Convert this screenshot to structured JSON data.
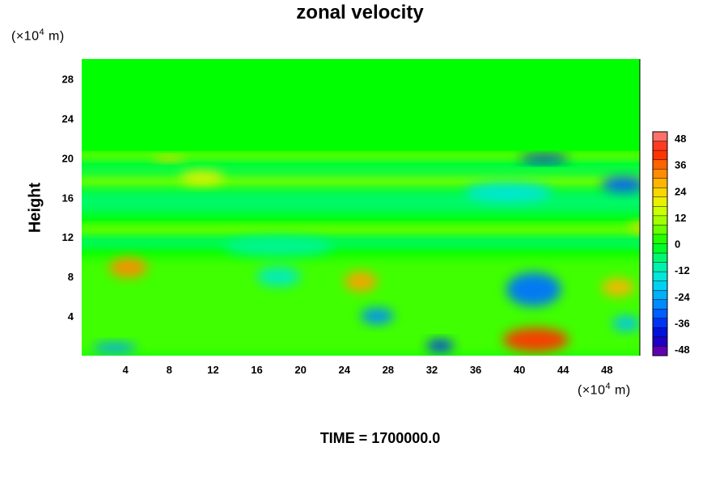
{
  "chart_data": {
    "type": "heatmap",
    "title": "zonal velocity",
    "ylabel": "Height",
    "x_unit": {
      "prefix": "(×10",
      "exp": "4",
      "suffix": " m)"
    },
    "y_unit": {
      "prefix": "(×10",
      "exp": "4",
      "suffix": " m)"
    },
    "xlim": [
      0,
      51
    ],
    "ylim": [
      0,
      30
    ],
    "x_ticks": [
      4,
      8,
      12,
      16,
      20,
      24,
      28,
      32,
      36,
      40,
      44,
      48
    ],
    "y_ticks": [
      4,
      8,
      12,
      16,
      20,
      24,
      28
    ],
    "colorbar": {
      "range": [
        -48,
        48
      ],
      "tick_values": [
        -48,
        -36,
        -24,
        -12,
        0,
        12,
        24,
        36,
        48
      ]
    },
    "background_value": 0,
    "features": [
      {
        "x": 0,
        "y": 17,
        "w": 51,
        "h": 1.5,
        "value": 8
      },
      {
        "x": 0,
        "y": 12.3,
        "w": 51,
        "h": 0.9,
        "value": 10
      },
      {
        "x": 0,
        "y": 11,
        "w": 51,
        "h": 0.9,
        "value": -8
      },
      {
        "x": 0,
        "y": 14.3,
        "w": 51,
        "h": 2.5,
        "value": -6
      },
      {
        "x": 0,
        "y": 19.8,
        "w": 51,
        "h": 0.6,
        "value": 14
      },
      {
        "x": 0,
        "y": 18.3,
        "w": 51,
        "h": 1.2,
        "value": -5
      },
      {
        "x": 0,
        "y": 0,
        "w": 51,
        "h": 10,
        "value": 4
      },
      {
        "x": 2.5,
        "y": 7.9,
        "w": 3.5,
        "h": 2,
        "value": 30
      },
      {
        "x": 6.5,
        "y": 19.6,
        "w": 3,
        "h": 0.6,
        "value": 22
      },
      {
        "x": 9,
        "y": 17.3,
        "w": 4,
        "h": 1.4,
        "value": 18
      },
      {
        "x": 16,
        "y": 7,
        "w": 4,
        "h": 2,
        "value": -12
      },
      {
        "x": 24,
        "y": 6.5,
        "w": 3,
        "h": 2,
        "value": 28
      },
      {
        "x": 25.5,
        "y": 3.2,
        "w": 3,
        "h": 1.6,
        "value": -26
      },
      {
        "x": 31.5,
        "y": 0.4,
        "w": 2.5,
        "h": 1.2,
        "value": -34
      },
      {
        "x": 38.5,
        "y": 0.4,
        "w": 6,
        "h": 2.4,
        "value": 38
      },
      {
        "x": 38.8,
        "y": 5,
        "w": 5,
        "h": 3.4,
        "value": -28
      },
      {
        "x": 40,
        "y": 19.5,
        "w": 4.5,
        "h": 0.8,
        "value": -36
      },
      {
        "x": 47.5,
        "y": 16.5,
        "w": 4,
        "h": 1.6,
        "value": -30
      },
      {
        "x": 47.5,
        "y": 6,
        "w": 3,
        "h": 1.8,
        "value": 26
      },
      {
        "x": 48.5,
        "y": 2.5,
        "w": 2.5,
        "h": 1.5,
        "value": -20
      },
      {
        "x": 50,
        "y": 12.5,
        "w": 3,
        "h": 1,
        "value": 22
      },
      {
        "x": 1,
        "y": 0.3,
        "w": 4,
        "h": 1,
        "value": -24
      },
      {
        "x": 13,
        "y": 10,
        "w": 10,
        "h": 2,
        "value": -8
      },
      {
        "x": 35,
        "y": 15.5,
        "w": 8,
        "h": 2,
        "value": -14
      }
    ]
  },
  "footer": {
    "time_label": "TIME = 1700000.0"
  }
}
